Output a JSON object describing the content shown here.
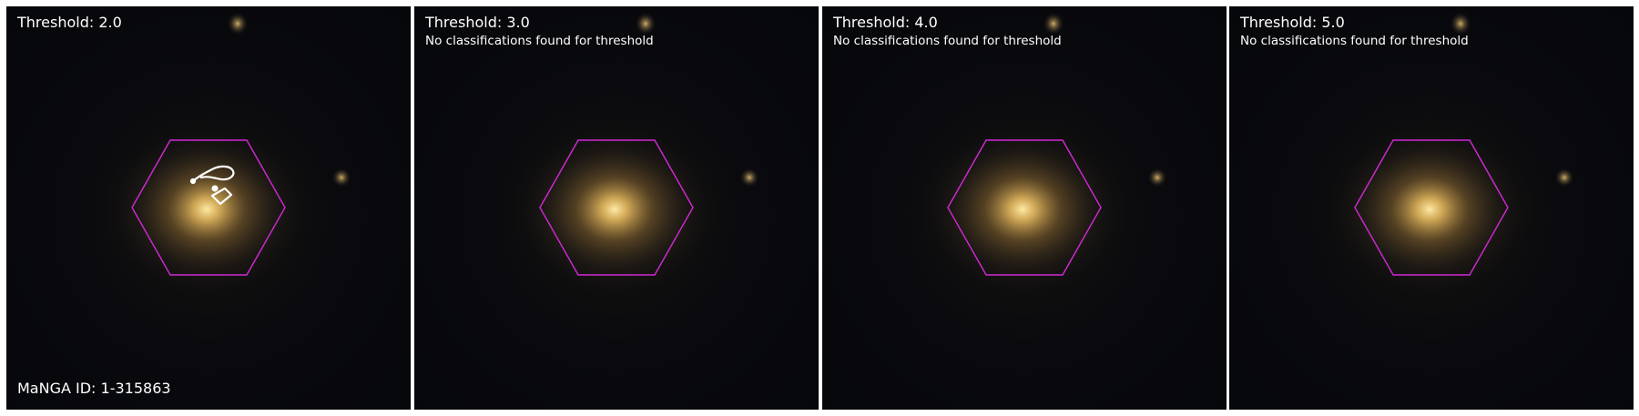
{
  "panels": [
    {
      "title": "Threshold: 2.0",
      "subtitle": ""
    },
    {
      "title": "Threshold: 3.0",
      "subtitle": "No classifications found for threshold"
    },
    {
      "title": "Threshold: 4.0",
      "subtitle": "No classifications found for threshold"
    },
    {
      "title": "Threshold: 5.0",
      "subtitle": "No classifications found for threshold"
    }
  ],
  "manga_id": "MaNGA ID: 1-315863",
  "colors": {
    "hexagon": "#d02ad6",
    "contour": "#ffffff",
    "galaxy_core": "#ffe7a0",
    "galaxy_halo": "#b58a3e",
    "background": "#06070b"
  }
}
